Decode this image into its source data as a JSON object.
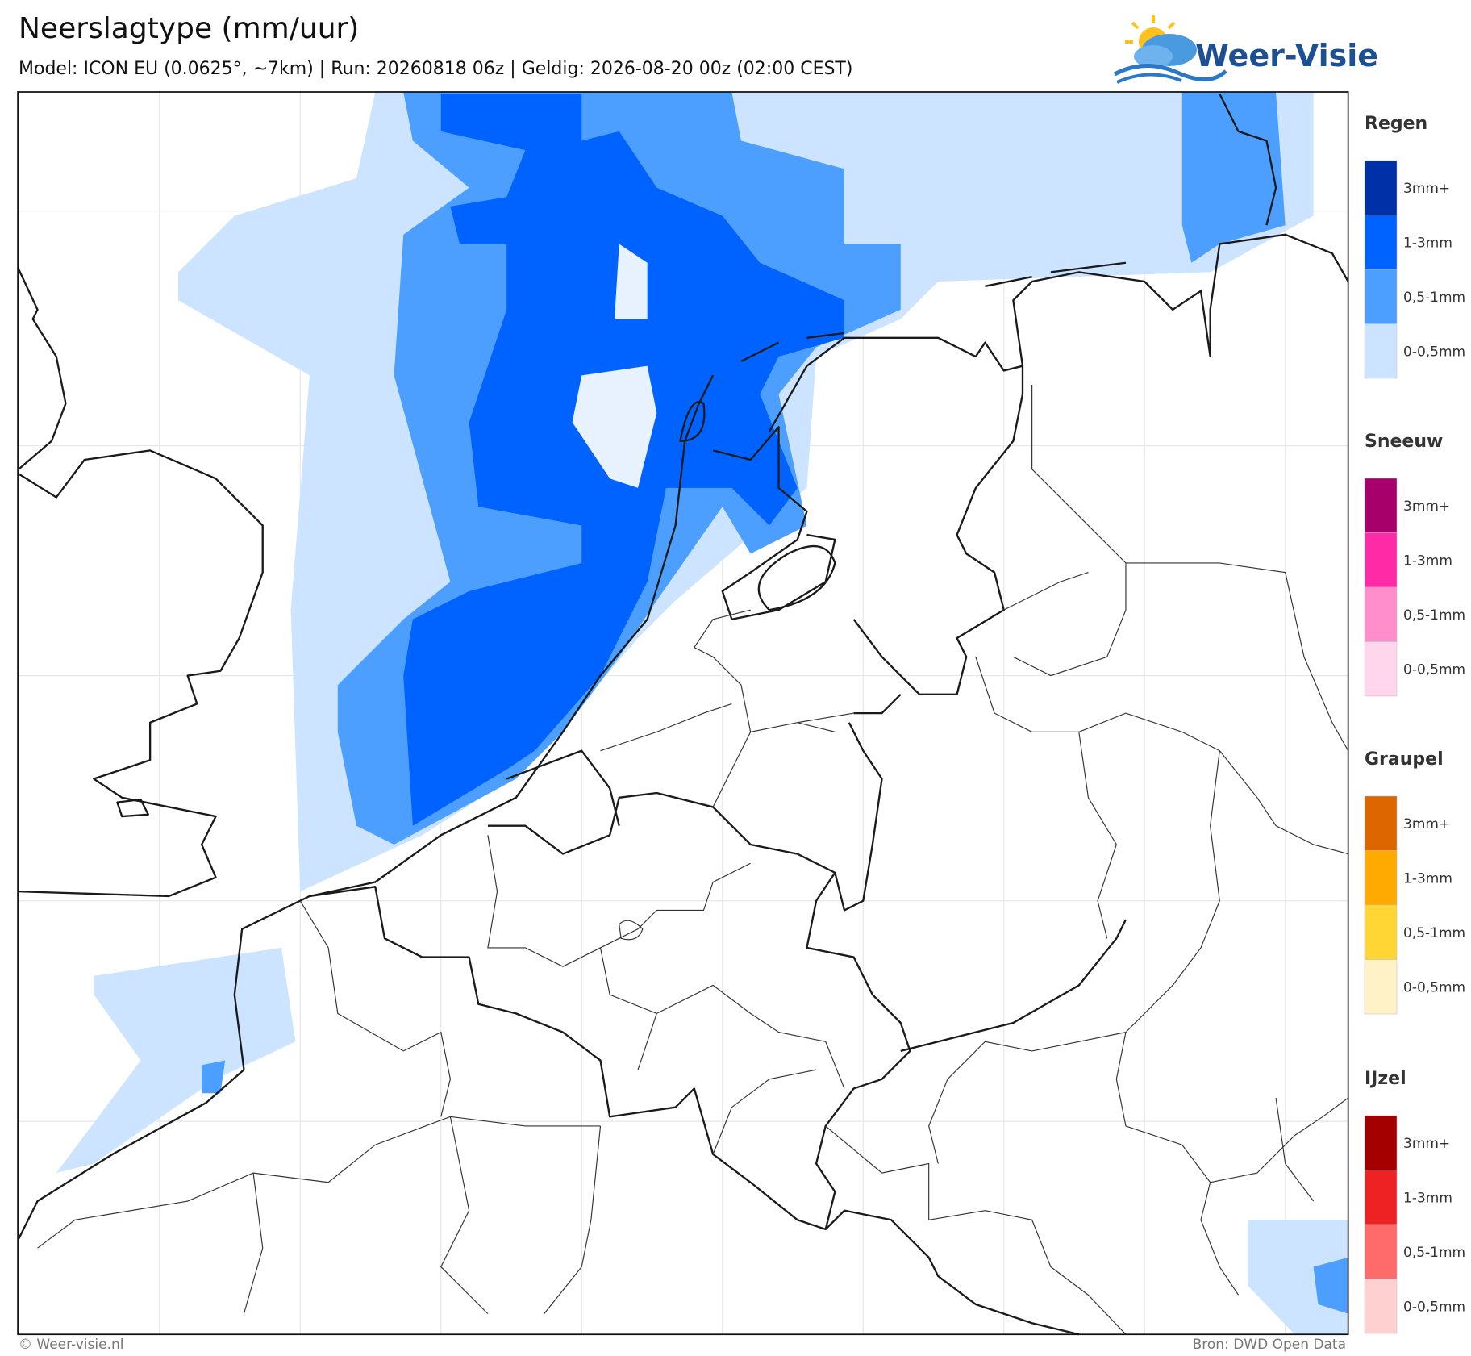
{
  "header": {
    "title": "Neerslagtype (mm/uur)",
    "subtitle": "Model: ICON EU (0.0625°, ~7km)  |  Run: 20260818 06z  |  Geldig: 2026-08-20 00z (02:00 CEST)",
    "logo": "Weer-Visie"
  },
  "legend": [
    {
      "title": "Regen",
      "items": [
        {
          "label": "3mm+",
          "color": "#0030a8"
        },
        {
          "label": "1-3mm",
          "color": "#0062ff"
        },
        {
          "label": "0,5-1mm",
          "color": "#4d9fff"
        },
        {
          "label": "0-0,5mm",
          "color": "#cce4ff"
        }
      ]
    },
    {
      "title": "Sneeuw",
      "items": [
        {
          "label": "3mm+",
          "color": "#a8006b"
        },
        {
          "label": "1-3mm",
          "color": "#ff2aa5"
        },
        {
          "label": "0,5-1mm",
          "color": "#ff8fcc"
        },
        {
          "label": "0-0,5mm",
          "color": "#ffd6ec"
        }
      ]
    },
    {
      "title": "Graupel",
      "items": [
        {
          "label": "3mm+",
          "color": "#dd6600"
        },
        {
          "label": "1-3mm",
          "color": "#ffaa00"
        },
        {
          "label": "0,5-1mm",
          "color": "#ffd633"
        },
        {
          "label": "0-0,5mm",
          "color": "#fff2c6"
        }
      ]
    },
    {
      "title": "IJzel",
      "items": [
        {
          "label": "3mm+",
          "color": "#a50000"
        },
        {
          "label": "1-3mm",
          "color": "#ee2222"
        },
        {
          "label": "0,5-1mm",
          "color": "#ff6a6a"
        },
        {
          "label": "0-0,5mm",
          "color": "#ffd0d0"
        }
      ]
    }
  ],
  "footer": {
    "credit": "© Weer-visie.nl",
    "source": "Bron: DWD Open Data"
  }
}
